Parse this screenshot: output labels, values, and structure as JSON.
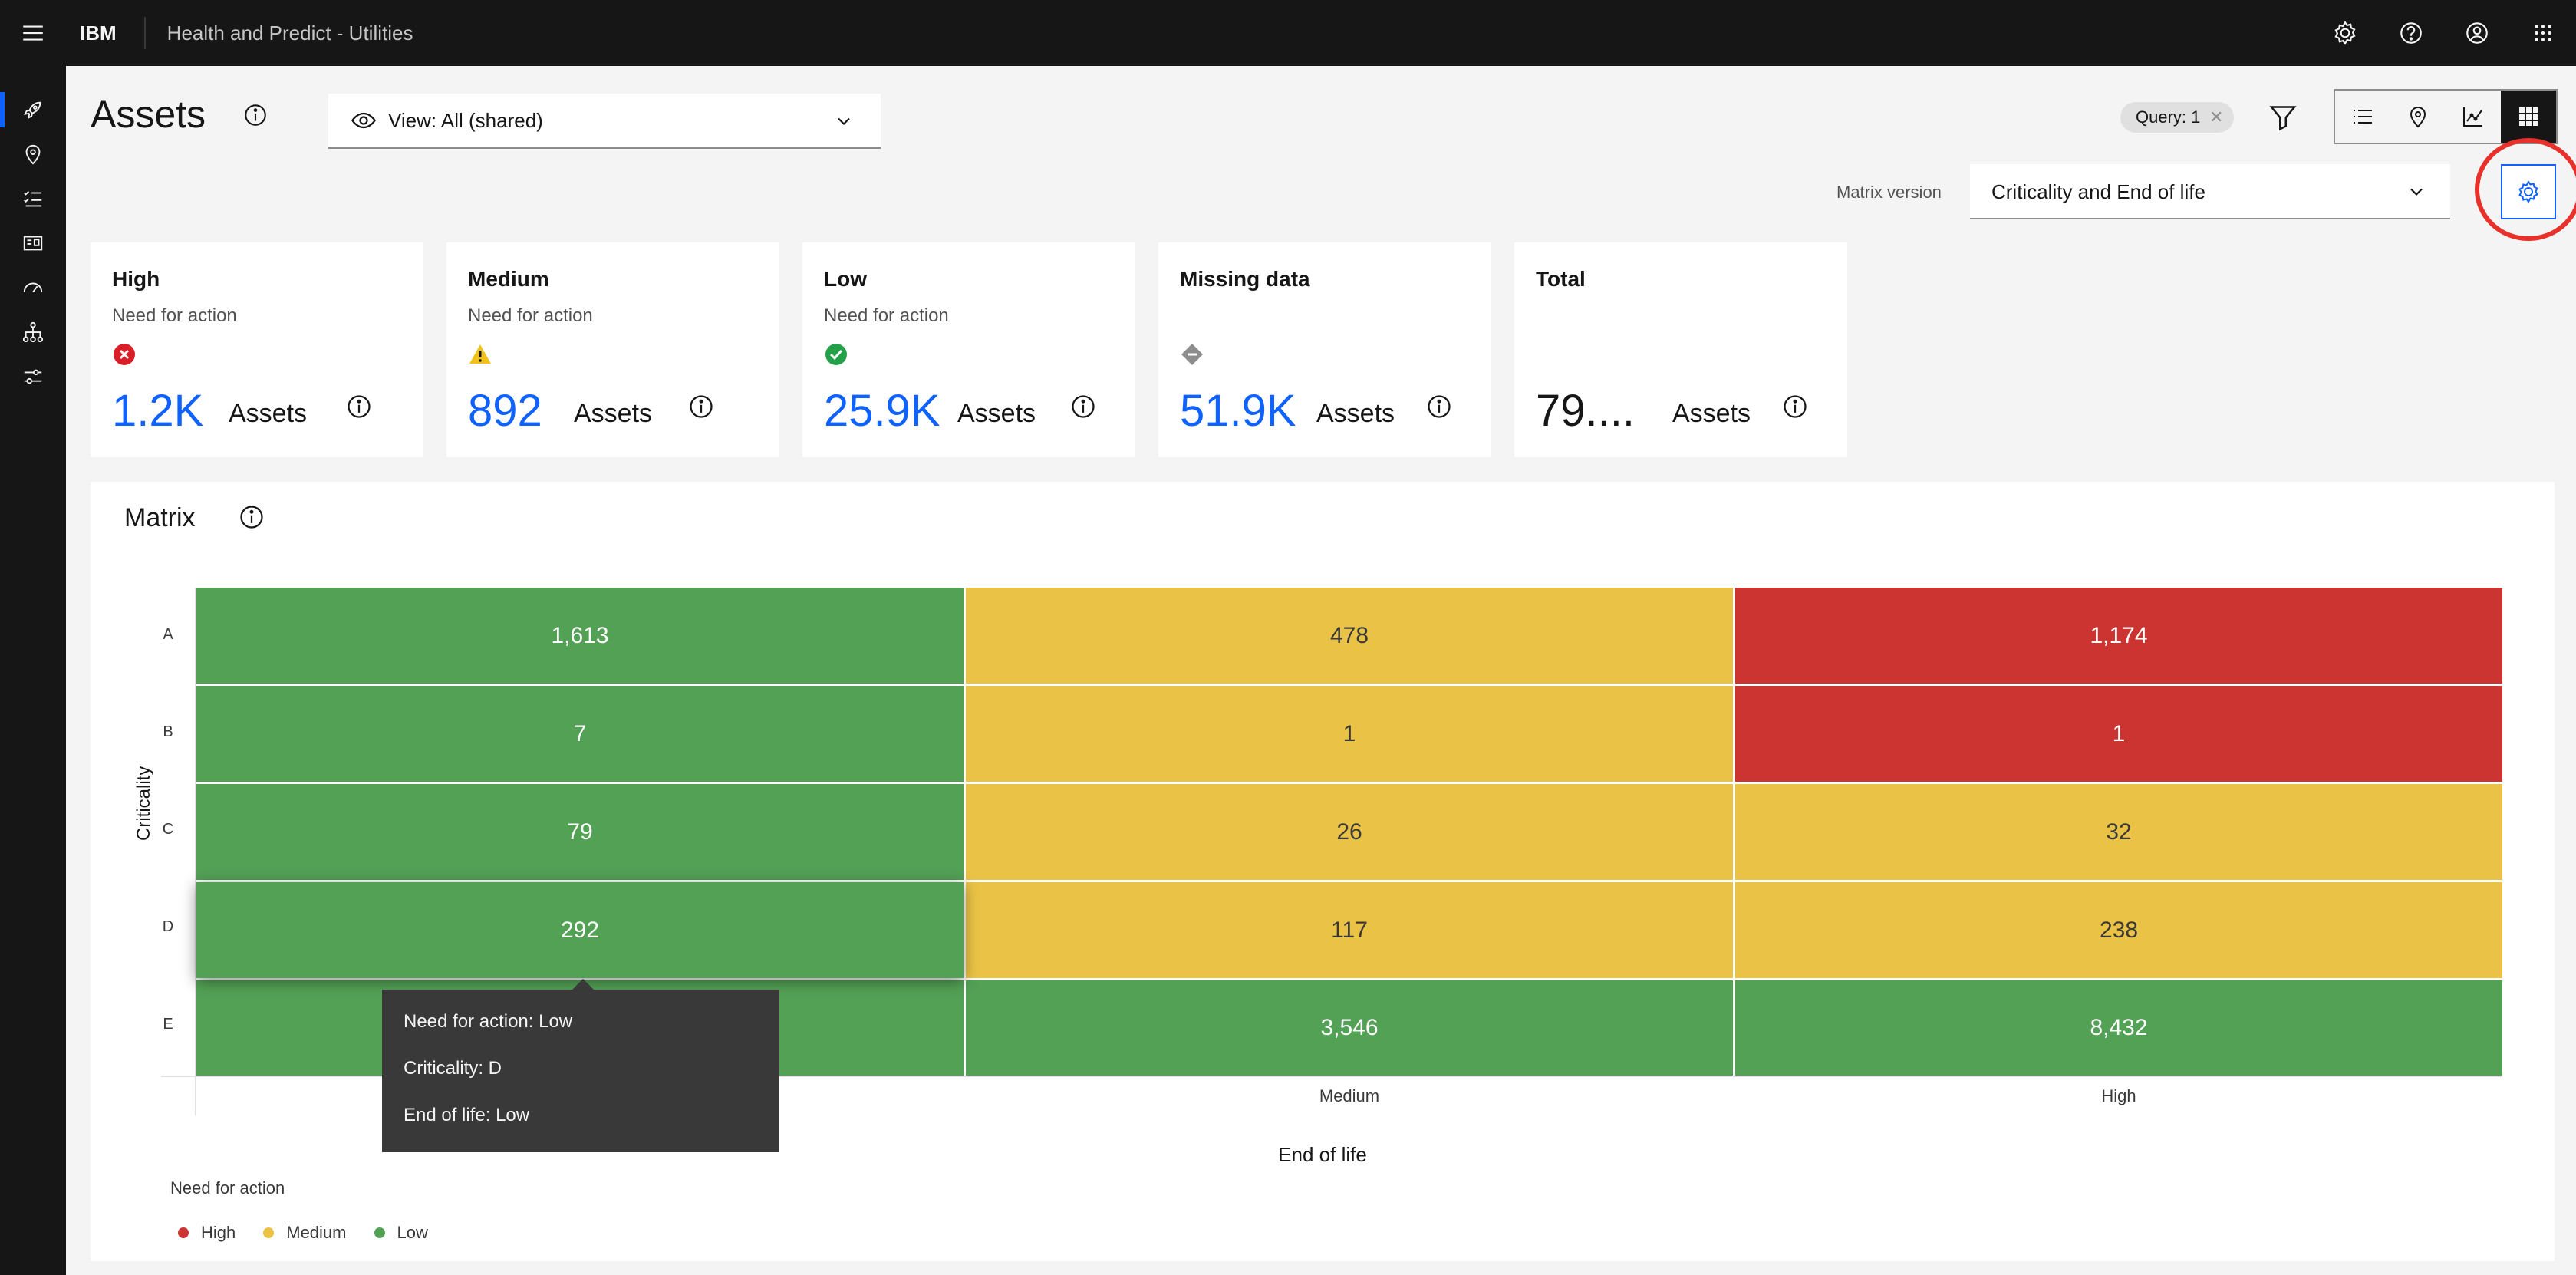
{
  "header": {
    "brand": "IBM",
    "product": "Health and Predict - Utilities",
    "icons": [
      "settings-icon",
      "help-icon",
      "user-icon",
      "app-switcher-icon"
    ]
  },
  "sidenav": {
    "icons": [
      "rocket-icon",
      "location-icon",
      "checklist-icon",
      "dashboard-card-icon",
      "gauge-icon",
      "hierarchy-icon",
      "sliders-icon"
    ],
    "active_index": 0
  },
  "page": {
    "title": "Assets",
    "view_select": "View: All (shared)",
    "query_tag": "Query: 1",
    "matrix_version_label": "Matrix version",
    "matrix_version_value": "Criticality and End of life",
    "view_modes": [
      "list-icon",
      "map-icon",
      "chart-icon",
      "matrix-icon"
    ],
    "selected_view_mode": "matrix-icon"
  },
  "cards": [
    {
      "title": "High",
      "subtitle": "Need for action",
      "status_icon": "error-icon",
      "status_color": "#da1e28",
      "value": "1.2K",
      "unit": "Assets"
    },
    {
      "title": "Medium",
      "subtitle": "Need for action",
      "status_icon": "warning-icon",
      "status_color": "#f1c21b",
      "value": "892",
      "unit": "Assets"
    },
    {
      "title": "Low",
      "subtitle": "Need for action",
      "status_icon": "success-icon",
      "status_color": "#24a148",
      "value": "25.9K",
      "unit": "Assets"
    },
    {
      "title": "Missing data",
      "subtitle": "",
      "status_icon": "missing-data-icon",
      "status_color": "#8d8d8d",
      "value": "51.9K",
      "unit": "Assets"
    },
    {
      "title": "Total",
      "subtitle": "",
      "status_icon": "",
      "status_color": "",
      "value": "79....",
      "unit": "Assets"
    }
  ],
  "matrix": {
    "title": "Matrix",
    "y_axis_label": "Criticality",
    "x_axis_label": "End of life",
    "rows": [
      "A",
      "B",
      "C",
      "D",
      "E"
    ],
    "columns": [
      "",
      "Medium",
      "High"
    ],
    "cells": [
      [
        {
          "value": "1,613",
          "level": "low"
        },
        {
          "value": "478",
          "level": "medium"
        },
        {
          "value": "1,174",
          "level": "high"
        }
      ],
      [
        {
          "value": "7",
          "level": "low"
        },
        {
          "value": "1",
          "level": "medium"
        },
        {
          "value": "1",
          "level": "high"
        }
      ],
      [
        {
          "value": "79",
          "level": "low"
        },
        {
          "value": "26",
          "level": "medium"
        },
        {
          "value": "32",
          "level": "medium"
        }
      ],
      [
        {
          "value": "292",
          "level": "low"
        },
        {
          "value": "117",
          "level": "medium"
        },
        {
          "value": "238",
          "level": "medium"
        }
      ],
      [
        {
          "value": "",
          "level": "low"
        },
        {
          "value": "3,546",
          "level": "low"
        },
        {
          "value": "8,432",
          "level": "low"
        }
      ]
    ],
    "level_colors": {
      "high": "#cc3431",
      "medium": "#eac346",
      "low": "#52a155"
    },
    "tooltip": {
      "lines": [
        "Need for action: Low",
        "Criticality: D",
        "End of life: Low"
      ]
    },
    "legend_title": "Need for action",
    "legend": [
      {
        "label": "High",
        "color": "#cc3431"
      },
      {
        "label": "Medium",
        "color": "#eac346"
      },
      {
        "label": "Low",
        "color": "#52a155"
      }
    ]
  }
}
